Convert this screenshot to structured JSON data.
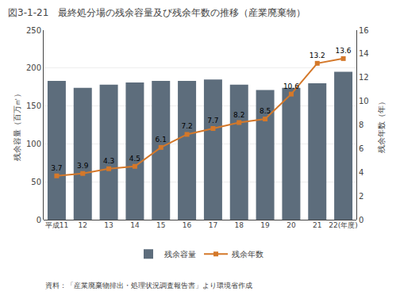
{
  "chart_data": {
    "type": "bar",
    "title": "図3-1-21　最終処分場の残余容量及び残余年数の推移（産業廃棄物）",
    "categories": [
      "平成11",
      "12",
      "13",
      "14",
      "15",
      "16",
      "17",
      "18",
      "19",
      "20",
      "21",
      "22(年度)"
    ],
    "series": [
      {
        "name": "残余容量",
        "type": "bar",
        "color": "#5d6d7c",
        "values": [
          183,
          174,
          178,
          181,
          183,
          183,
          185,
          178,
          171,
          174,
          180,
          195
        ]
      },
      {
        "name": "残余年数",
        "type": "line",
        "axis": "y2",
        "color": "#d4782a",
        "marker": "square",
        "data_labels": true,
        "values": [
          3.7,
          3.9,
          4.3,
          4.5,
          6.1,
          7.2,
          7.7,
          8.2,
          8.5,
          10.6,
          13.2,
          13.6
        ]
      }
    ],
    "y_label": "残余容量（百万㎥）",
    "y2_label": "残余年数（年）",
    "ylim": [
      0,
      250
    ],
    "yticks": [
      0,
      50,
      100,
      150,
      200,
      250
    ],
    "y2lim": [
      0,
      16
    ],
    "y2ticks": [
      0,
      2,
      4,
      6,
      8,
      10,
      12,
      14,
      16
    ],
    "grid": true,
    "legend": "bottom",
    "annotations": [
      "資料：「産業廃棄物排出・処理状況調査報告書」より環境省作成"
    ]
  }
}
